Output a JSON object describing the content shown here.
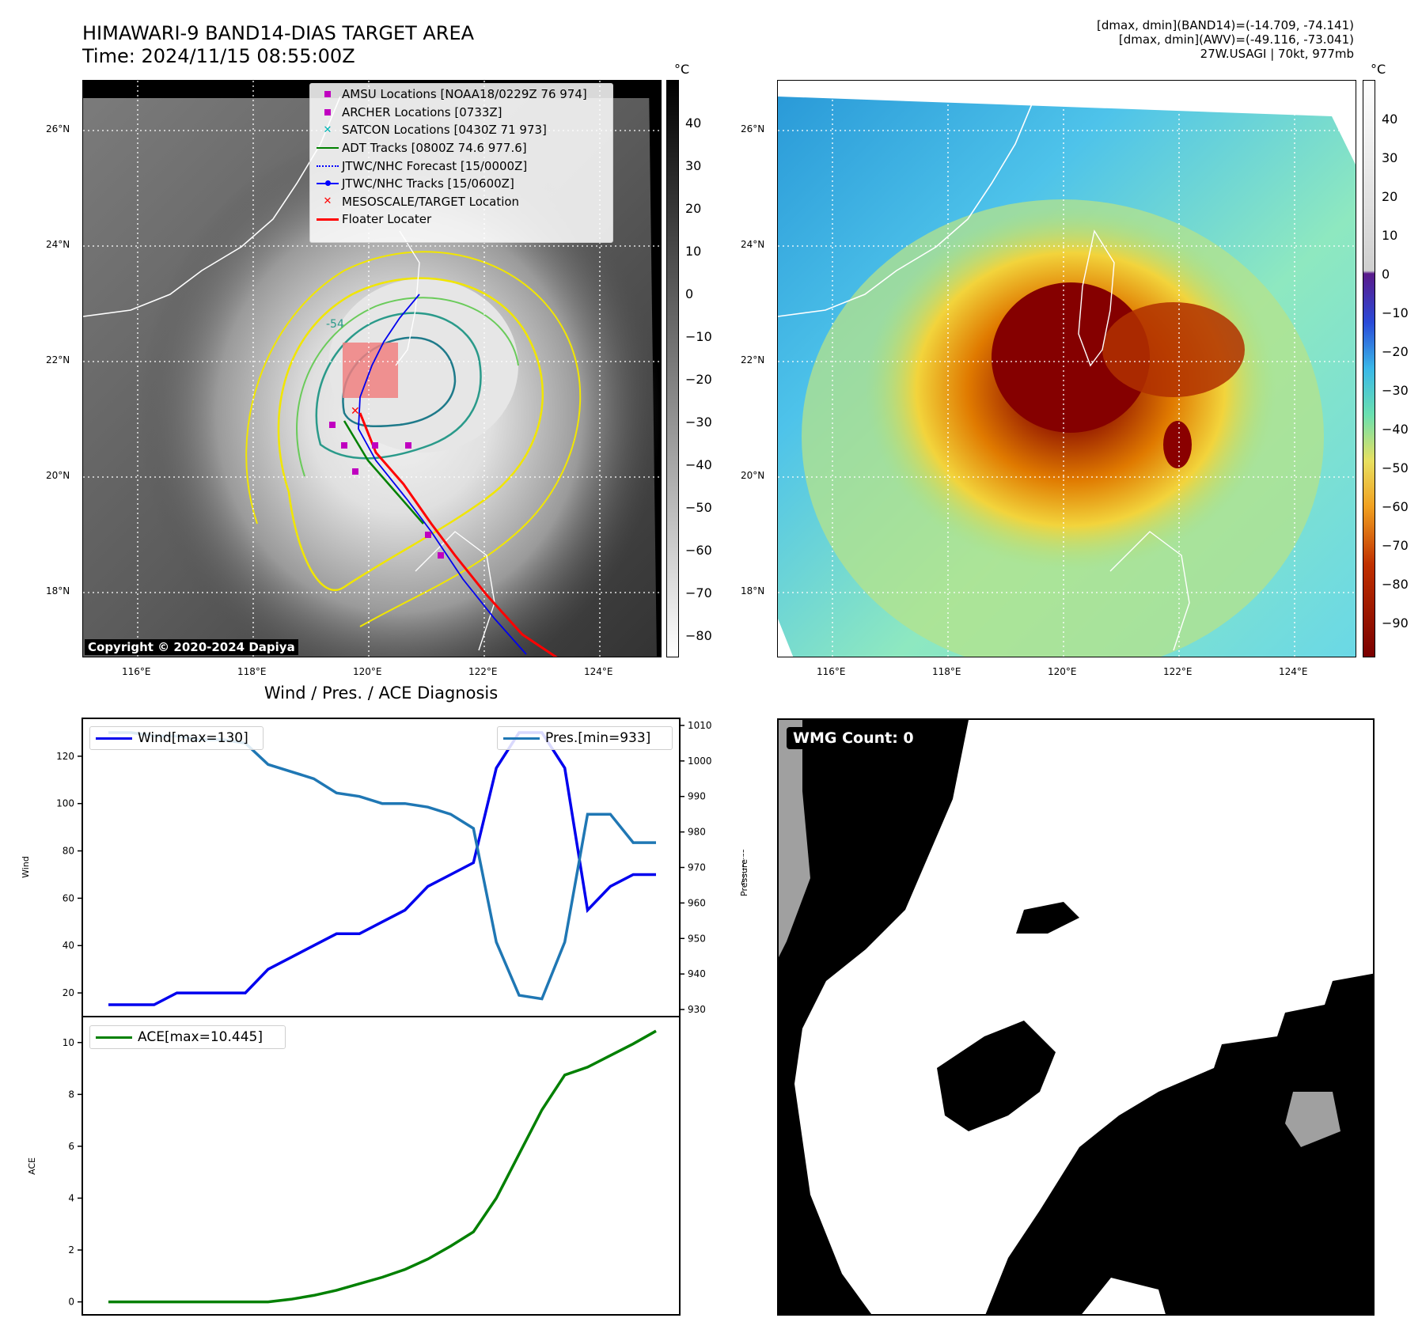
{
  "header": {
    "title_line1": "HIMAWARI-9 BAND14-DIAS TARGET AREA",
    "title_line2": "Time: 2024/11/15 08:55:00Z",
    "stats_line1": "[dmax, dmin](BAND14)=(-14.709, -74.141)",
    "stats_line2": "[dmax, dmin](AWV)=(-49.116, -73.041)",
    "stats_line3": "27W.USAGI | 70kt, 977mb"
  },
  "map": {
    "lat_ticks": [
      "26°N",
      "24°N",
      "22°N",
      "20°N",
      "18°N"
    ],
    "lon_ticks": [
      "116°E",
      "118°E",
      "120°E",
      "122°E",
      "124°E"
    ],
    "copyright": "Copyright © 2020-2024 Dapiya",
    "contour_label": "-54",
    "colorbar_unit": "°C",
    "band14_colorbar_ticks": [
      "40",
      "30",
      "20",
      "10",
      "0",
      "−10",
      "−20",
      "−30",
      "−40",
      "−50",
      "−60",
      "−70",
      "−80"
    ],
    "awv_colorbar_ticks": [
      "40",
      "30",
      "20",
      "10",
      "0",
      "−10",
      "−20",
      "−30",
      "−40",
      "−50",
      "−60",
      "−70",
      "−80",
      "−90"
    ],
    "legend": [
      {
        "label": "AMSU Locations [NOAA18/0229Z 76 974]",
        "color": "#c000c0",
        "icon": "square-marker"
      },
      {
        "label": "ARCHER Locations [0733Z]",
        "color": "#c000c0",
        "icon": "square-marker"
      },
      {
        "label": "SATCON Locations [0430Z 71 973]",
        "color": "#00b5b5",
        "icon": "x-marker"
      },
      {
        "label": "ADT Tracks [0800Z 74.6 977.6]",
        "color": "#008000",
        "icon": "line"
      },
      {
        "label": "JTWC/NHC Forecast [15/0000Z]",
        "color": "#0000ff",
        "icon": "dotted-line"
      },
      {
        "label": "JTWC/NHC Tracks [15/0600Z]",
        "color": "#0000ff",
        "icon": "line-dot"
      },
      {
        "label": "MESOSCALE/TARGET Location",
        "color": "#ff0000",
        "icon": "x-marker"
      },
      {
        "label": "Floater Locater",
        "color": "#ff0000",
        "icon": "line"
      }
    ]
  },
  "chart_data": [
    {
      "type": "line",
      "title": "Wind / Pres. / ACE Diagnosis",
      "ylabel": "Wind",
      "y2label": "Pressure",
      "ylim": [
        10,
        136
      ],
      "y2lim": [
        928,
        1012
      ],
      "y_ticks": [
        "120",
        "100",
        "80",
        "60",
        "40",
        "20"
      ],
      "y2_ticks": [
        "1010",
        "1000",
        "990",
        "980",
        "970",
        "960",
        "950",
        "940",
        "930"
      ],
      "series": [
        {
          "name": "Wind[max=130]",
          "color": "#0000ee",
          "axis": "left",
          "values": [
            15,
            15,
            15,
            20,
            20,
            20,
            20,
            30,
            35,
            40,
            45,
            45,
            50,
            55,
            65,
            70,
            75,
            115,
            130,
            130,
            115,
            55,
            65,
            70,
            70
          ]
        },
        {
          "name": "Pres.[min=933]",
          "color": "#1f77b4",
          "axis": "right",
          "values": [
            1008,
            1008,
            1007,
            1007,
            1006,
            1006,
            1005,
            999,
            997,
            995,
            991,
            990,
            988,
            988,
            987,
            985,
            981,
            949,
            934,
            933,
            949,
            985,
            985,
            977,
            977
          ]
        }
      ]
    },
    {
      "type": "line",
      "ylabel": "ACE",
      "ylim": [
        -0.5,
        11
      ],
      "y_ticks": [
        "10",
        "8",
        "6",
        "4",
        "2",
        "0"
      ],
      "series": [
        {
          "name": "ACE[max=10.445]",
          "color": "#008000",
          "values": [
            0,
            0,
            0,
            0,
            0,
            0,
            0,
            0,
            0.1,
            0.25,
            0.45,
            0.7,
            0.95,
            1.25,
            1.65,
            2.15,
            2.7,
            4.0,
            5.7,
            7.4,
            8.75,
            9.05,
            9.5,
            9.95,
            10.445
          ]
        }
      ]
    }
  ],
  "wmg": {
    "badge": "WMG Count: 0"
  }
}
